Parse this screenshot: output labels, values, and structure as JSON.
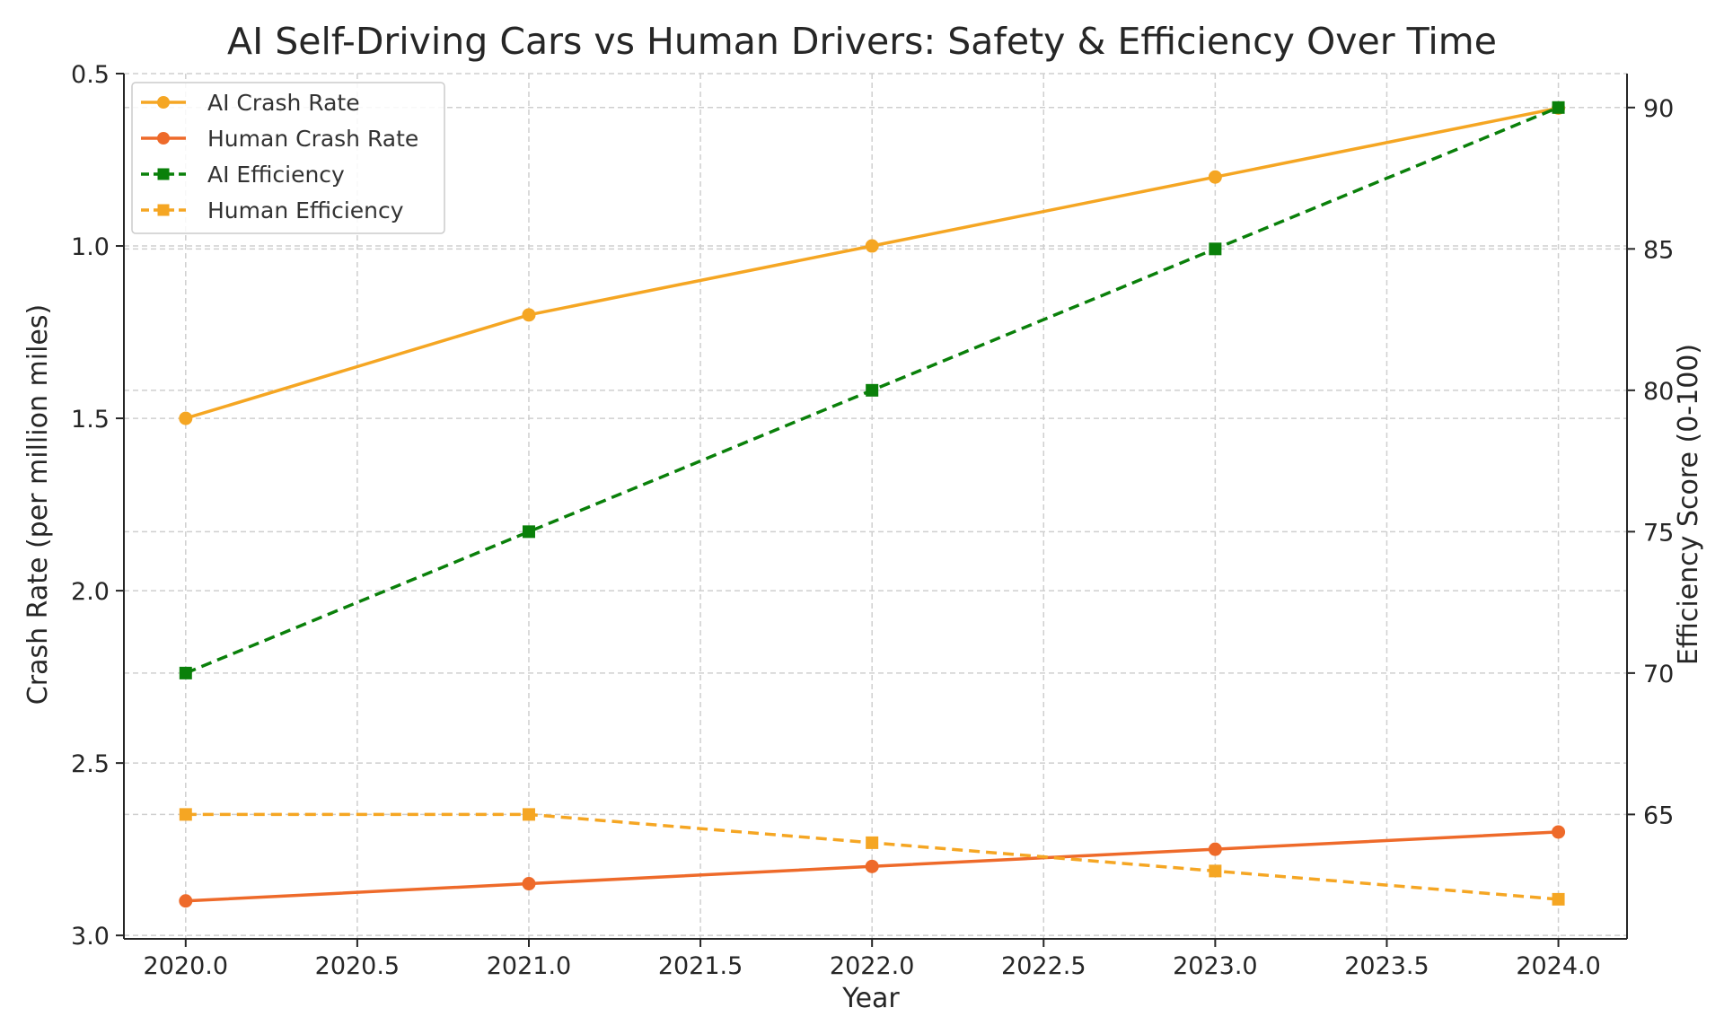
{
  "chart_data": {
    "type": "line",
    "title": "AI Self-Driving Cars vs Human Drivers: Safety & Efficiency Over Time",
    "xlabel": "Year",
    "ylabel_left": "Crash Rate (per million miles)",
    "ylabel_right": "Efficiency Score (0-100)",
    "x": [
      2020,
      2021,
      2022,
      2023,
      2024
    ],
    "x_ticks": [
      2020.0,
      2020.5,
      2021.0,
      2021.5,
      2022.0,
      2022.5,
      2023.0,
      2023.5,
      2024.0
    ],
    "x_tick_labels": [
      "2020.0",
      "2020.5",
      "2021.0",
      "2021.5",
      "2022.0",
      "2022.5",
      "2023.0",
      "2023.5",
      "2024.0"
    ],
    "xlim": [
      2019.82,
      2024.2
    ],
    "left_axis": {
      "ylim": [
        3.01,
        0.5
      ],
      "inverted": true,
      "ticks": [
        0.5,
        1.0,
        1.5,
        2.0,
        2.5,
        3.0
      ],
      "tick_labels": [
        "0.5",
        "1.0",
        "1.5",
        "2.0",
        "2.5",
        "3.0"
      ]
    },
    "right_axis": {
      "ylim": [
        60.6,
        91.2
      ],
      "ticks": [
        65,
        70,
        75,
        80,
        85,
        90
      ],
      "tick_labels": [
        "65",
        "70",
        "75",
        "80",
        "85",
        "90"
      ]
    },
    "grid": true,
    "legend_position": "top-left",
    "series": [
      {
        "name": "AI Crash Rate",
        "axis": "left",
        "values": [
          1.5,
          1.2,
          1.0,
          0.8,
          0.6
        ],
        "color": "#F5A623",
        "linestyle": "solid",
        "marker": "circle"
      },
      {
        "name": "Human Crash Rate",
        "axis": "left",
        "values": [
          2.9,
          2.85,
          2.8,
          2.75,
          2.7
        ],
        "color": "#EE6A2A",
        "linestyle": "solid",
        "marker": "circle"
      },
      {
        "name": "AI Efficiency",
        "axis": "right",
        "values": [
          70,
          75,
          80,
          85,
          90
        ],
        "color": "#0A800A",
        "linestyle": "dashed",
        "marker": "square"
      },
      {
        "name": "Human Efficiency",
        "axis": "right",
        "values": [
          65,
          65,
          64,
          63,
          62
        ],
        "color": "#F5A623",
        "linestyle": "dashed",
        "marker": "square"
      }
    ]
  }
}
